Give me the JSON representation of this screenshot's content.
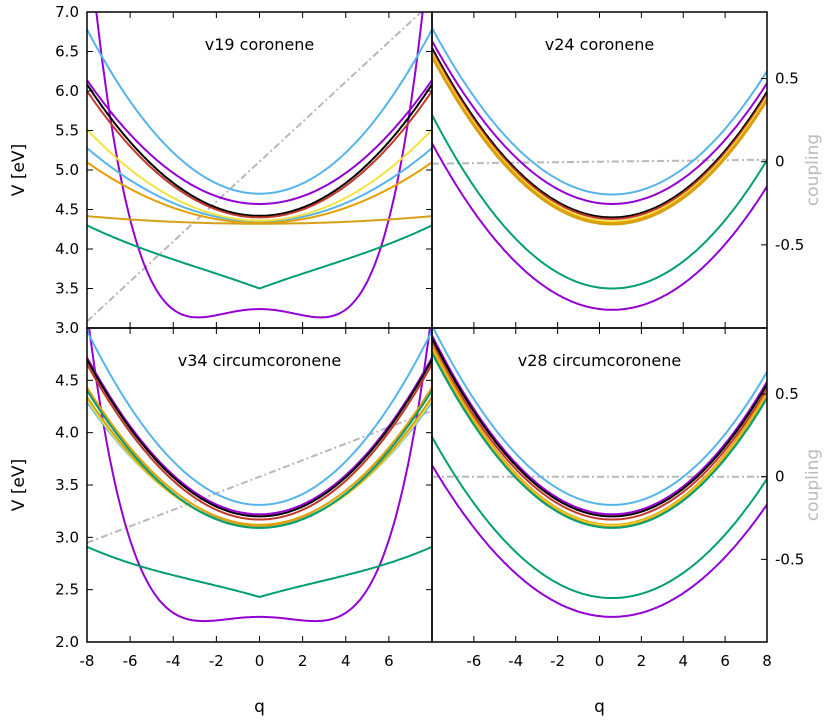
{
  "colors": {
    "purple": "#9400d3",
    "teal": "#009e73",
    "skyblue": "#56b4e9",
    "orange": "#e69f00",
    "yellow": "#f0e442",
    "red": "#c0392b",
    "black": "#000000",
    "gold": "#d4a017",
    "gray": "#b8b8b8"
  },
  "chart_data": [
    {
      "type": "line",
      "title": "v19 coronene",
      "ylabel": "V [eV]",
      "ylim": [
        3.0,
        7.0
      ],
      "yticks": [
        "3.0",
        "3.5",
        "4.0",
        "4.5",
        "5.0",
        "5.5",
        "6.0",
        "6.5",
        "7.0"
      ],
      "yticks_values": [
        3.0,
        3.5,
        4.0,
        4.5,
        5.0,
        5.5,
        6.0,
        6.5,
        7.0
      ],
      "xlim": [
        -8,
        8
      ],
      "coupling_line": {
        "a": 0.0,
        "b": 0.12,
        "c": 0.0
      },
      "series": [
        {
          "color": "purple",
          "model": "dw",
          "a": 3.24,
          "b": -0.026,
          "c": 0.0016
        },
        {
          "color": "teal",
          "model": "tq",
          "a": 3.5,
          "b": 0.1,
          "c": 0.0
        },
        {
          "color": "skyblue",
          "model": "quad",
          "a": 4.7,
          "b": 0.0,
          "c": 0.0325
        },
        {
          "color": "skyblue",
          "model": "quad",
          "a": 4.35,
          "b": 0.0,
          "c": 0.0145
        },
        {
          "color": "purple",
          "model": "quad",
          "a": 4.57,
          "b": 0.0,
          "c": 0.0245
        },
        {
          "color": "black",
          "model": "quad",
          "a": 4.42,
          "b": 0.0,
          "c": 0.026
        },
        {
          "color": "red",
          "model": "quad",
          "a": 4.4,
          "b": 0.0,
          "c": 0.025
        },
        {
          "color": "yellow",
          "model": "quad",
          "a": 4.36,
          "b": 0.0,
          "c": 0.018
        },
        {
          "color": "orange",
          "model": "quad",
          "a": 4.33,
          "b": 0.0,
          "c": 0.012
        },
        {
          "color": "gold",
          "model": "quad",
          "a": 4.32,
          "b": 0.0,
          "c": 0.0015
        }
      ]
    },
    {
      "type": "line",
      "title": "v24 coronene",
      "ylabel": "coupling",
      "ylim": [
        3.0,
        7.0
      ],
      "xlim": [
        -8,
        8
      ],
      "y2ticks": [
        "0.5",
        "0",
        "-0.5"
      ],
      "y2ticks_values": [
        0.5,
        0,
        -0.5
      ],
      "y2lim": [
        -1.0,
        0.9
      ],
      "coupling_line": {
        "a": 0.0,
        "b": 0.0015,
        "c": 0.0
      },
      "series": [
        {
          "color": "purple",
          "model": "shift",
          "a": 3.23,
          "b": 0.6,
          "c": 0.0285
        },
        {
          "color": "teal",
          "model": "shift",
          "a": 3.5,
          "b": 0.6,
          "c": 0.0297
        },
        {
          "color": "skyblue",
          "model": "shift",
          "a": 4.69,
          "b": 0.6,
          "c": 0.0285
        },
        {
          "color": "purple",
          "model": "shift",
          "a": 4.57,
          "b": 0.6,
          "c": 0.0279
        },
        {
          "color": "black",
          "model": "shift",
          "a": 4.4,
          "b": 0.6,
          "c": 0.029
        },
        {
          "color": "red",
          "model": "shift",
          "a": 4.38,
          "b": 0.6,
          "c": 0.0288
        },
        {
          "color": "yellow",
          "model": "shift",
          "a": 4.35,
          "b": 0.6,
          "c": 0.0288
        },
        {
          "color": "orange",
          "model": "shift",
          "a": 4.33,
          "b": 0.6,
          "c": 0.0287
        },
        {
          "color": "gold",
          "model": "shift",
          "a": 4.31,
          "b": 0.6,
          "c": 0.0286
        }
      ]
    },
    {
      "type": "line",
      "title": "v34 circumcoronene",
      "ylabel": "V [eV]",
      "ylim": [
        2.0,
        5.0
      ],
      "yticks": [
        "2.0",
        "2.5",
        "3.0",
        "3.5",
        "4.0",
        "4.5"
      ],
      "yticks_values": [
        2.0,
        2.5,
        3.0,
        3.5,
        4.0,
        4.5
      ],
      "xlim": [
        -8,
        8
      ],
      "xticks": [
        "-8",
        "-6",
        "-4",
        "-2",
        "0",
        "2",
        "4",
        "6"
      ],
      "xticks_values": [
        -8,
        -6,
        -4,
        -2,
        0,
        2,
        4,
        6
      ],
      "xlabel": "q",
      "coupling_line": {
        "a": 0.0,
        "b": 0.05,
        "c": 0.0
      },
      "series": [
        {
          "color": "purple",
          "model": "dw",
          "a": 2.24,
          "b": -0.012,
          "c": 0.0009
        },
        {
          "color": "teal",
          "model": "tq",
          "a": 2.43,
          "b": 0.06,
          "c": 0.0
        },
        {
          "color": "skyblue",
          "model": "quad",
          "a": 3.31,
          "b": 0.0,
          "c": 0.026
        },
        {
          "color": "skyblue",
          "model": "quad",
          "a": 3.11,
          "b": 0.0,
          "c": 0.0185
        },
        {
          "color": "purple",
          "model": "quad",
          "a": 3.22,
          "b": 0.0,
          "c": 0.0234
        },
        {
          "color": "black",
          "model": "quad",
          "a": 3.2,
          "b": 0.0,
          "c": 0.0234
        },
        {
          "color": "red",
          "model": "quad",
          "a": 3.17,
          "b": 0.0,
          "c": 0.0232
        },
        {
          "color": "orange",
          "model": "quad",
          "a": 3.12,
          "b": 0.0,
          "c": 0.0205
        },
        {
          "color": "yellow",
          "model": "quad",
          "a": 3.1,
          "b": 0.0,
          "c": 0.019
        },
        {
          "color": "gold",
          "model": "quad",
          "a": 3.1,
          "b": 0.0,
          "c": 0.0194
        },
        {
          "color": "teal",
          "model": "quad",
          "a": 3.09,
          "b": 0.0,
          "c": 0.0205
        }
      ]
    },
    {
      "type": "line",
      "title": "v28 circumcoronene",
      "ylabel": "coupling",
      "ylim": [
        2.0,
        5.0
      ],
      "xlim": [
        -8,
        8
      ],
      "xticks": [
        "-6",
        "-4",
        "-2",
        "0",
        "2",
        "4",
        "6",
        "8"
      ],
      "xticks_values": [
        -6,
        -4,
        -2,
        0,
        2,
        4,
        6,
        8
      ],
      "xlabel": "q",
      "y2ticks": [
        "0.5",
        "0",
        "-0.5"
      ],
      "y2ticks_values": [
        0.5,
        0,
        -0.5
      ],
      "y2lim": [
        -1.0,
        0.9
      ],
      "coupling_line": {
        "a": 0.0,
        "b": 0.0,
        "c": 0.0
      },
      "series": [
        {
          "color": "purple",
          "model": "shift",
          "a": 2.24,
          "b": 0.6,
          "c": 0.0196
        },
        {
          "color": "teal",
          "model": "shift",
          "a": 2.42,
          "b": 0.6,
          "c": 0.0208
        },
        {
          "color": "skyblue",
          "model": "shift",
          "a": 3.31,
          "b": 0.6,
          "c": 0.0232
        },
        {
          "color": "purple",
          "model": "shift",
          "a": 3.22,
          "b": 0.6,
          "c": 0.0231
        },
        {
          "color": "black",
          "model": "shift",
          "a": 3.2,
          "b": 0.6,
          "c": 0.023
        },
        {
          "color": "red",
          "model": "shift",
          "a": 3.17,
          "b": 0.6,
          "c": 0.0228
        },
        {
          "color": "orange",
          "model": "shift",
          "a": 3.12,
          "b": 0.6,
          "c": 0.0232
        },
        {
          "color": "yellow",
          "model": "shift",
          "a": 3.11,
          "b": 0.6,
          "c": 0.0228
        },
        {
          "color": "gold",
          "model": "shift",
          "a": 3.1,
          "b": 0.6,
          "c": 0.0228
        },
        {
          "color": "teal",
          "model": "shift",
          "a": 3.09,
          "b": 0.6,
          "c": 0.0226
        }
      ]
    }
  ]
}
